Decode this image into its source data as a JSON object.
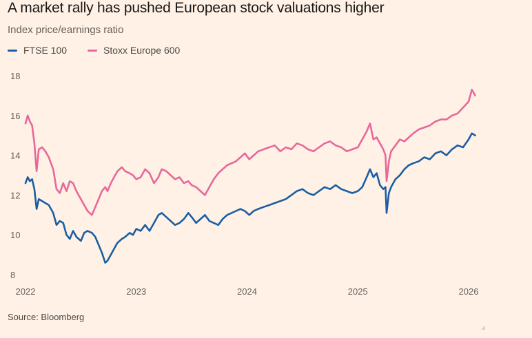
{
  "title": "A market rally has pushed European stock valuations higher",
  "subtitle": "Index price/earnings ratio",
  "source": "Source: Bloomberg",
  "colors": {
    "ftse": "#1a5ea3",
    "stoxx": "#e7689a",
    "background": "#fff1e5"
  },
  "chart_data": {
    "type": "line",
    "title": "A market rally has pushed European stock valuations higher",
    "subtitle": "Index price/earnings ratio",
    "xlabel": "",
    "ylabel": "Index price/earnings ratio",
    "xlim": [
      2022.0,
      2026.1
    ],
    "ylim": [
      8,
      18
    ],
    "grid": false,
    "legend": "top-left",
    "x_ticks": [
      2022,
      2023,
      2024,
      2025,
      2026
    ],
    "x_tick_labels": [
      "2022",
      "2023",
      "2024",
      "2025",
      "2026"
    ],
    "y_ticks": [
      8,
      10,
      12,
      14,
      16,
      18
    ],
    "y_tick_labels": [
      "8",
      "10",
      "12",
      "14",
      "16",
      "18"
    ],
    "series": [
      {
        "name": "FTSE 100",
        "color": "#1a5ea3",
        "x": [
          2022.0,
          2022.02,
          2022.04,
          2022.06,
          2022.08,
          2022.1,
          2022.12,
          2022.15,
          2022.18,
          2022.21,
          2022.25,
          2022.28,
          2022.31,
          2022.34,
          2022.37,
          2022.4,
          2022.43,
          2022.46,
          2022.5,
          2022.53,
          2022.56,
          2022.6,
          2022.63,
          2022.66,
          2022.69,
          2022.72,
          2022.74,
          2022.77,
          2022.8,
          2022.83,
          2022.87,
          2022.9,
          2022.94,
          2022.97,
          2023.0,
          2023.04,
          2023.08,
          2023.12,
          2023.16,
          2023.2,
          2023.23,
          2023.27,
          2023.31,
          2023.35,
          2023.39,
          2023.43,
          2023.47,
          2023.5,
          2023.54,
          2023.58,
          2023.62,
          2023.66,
          2023.7,
          2023.74,
          2023.78,
          2023.82,
          2023.86,
          2023.9,
          2023.94,
          2023.98,
          2024.02,
          2024.06,
          2024.1,
          2024.15,
          2024.2,
          2024.25,
          2024.3,
          2024.35,
          2024.4,
          2024.45,
          2024.5,
          2024.55,
          2024.6,
          2024.65,
          2024.7,
          2024.75,
          2024.8,
          2024.85,
          2024.9,
          2024.95,
          2025.0,
          2025.04,
          2025.08,
          2025.11,
          2025.14,
          2025.17,
          2025.2,
          2025.23,
          2025.25,
          2025.26,
          2025.28,
          2025.3,
          2025.34,
          2025.38,
          2025.42,
          2025.46,
          2025.5,
          2025.55,
          2025.6,
          2025.65,
          2025.7,
          2025.75,
          2025.8,
          2025.85,
          2025.9,
          2025.95,
          2026.0,
          2026.03,
          2026.06
        ],
        "values": [
          12.6,
          12.9,
          12.7,
          12.8,
          12.3,
          11.3,
          11.8,
          11.7,
          11.6,
          11.5,
          11.1,
          10.5,
          10.7,
          10.6,
          10.0,
          9.8,
          10.2,
          9.9,
          9.7,
          10.1,
          10.2,
          10.1,
          9.9,
          9.5,
          9.1,
          8.6,
          8.7,
          9.0,
          9.3,
          9.6,
          9.8,
          9.9,
          10.1,
          10.0,
          10.3,
          10.2,
          10.5,
          10.2,
          10.6,
          11.0,
          11.1,
          10.9,
          10.7,
          10.5,
          10.6,
          10.8,
          11.1,
          10.9,
          10.6,
          10.8,
          11.0,
          10.7,
          10.6,
          10.5,
          10.8,
          11.0,
          11.1,
          11.2,
          11.3,
          11.2,
          11.0,
          11.2,
          11.3,
          11.4,
          11.5,
          11.6,
          11.7,
          11.8,
          12.0,
          12.2,
          12.3,
          12.1,
          12.0,
          12.2,
          12.4,
          12.3,
          12.5,
          12.3,
          12.2,
          12.1,
          12.2,
          12.4,
          12.9,
          13.3,
          12.9,
          13.1,
          12.5,
          12.3,
          12.4,
          11.1,
          12.1,
          12.4,
          12.8,
          13.0,
          13.3,
          13.5,
          13.6,
          13.7,
          13.9,
          13.8,
          14.1,
          14.2,
          14.0,
          14.3,
          14.5,
          14.4,
          14.8,
          15.1,
          15.0
        ]
      },
      {
        "name": "Stoxx Europe 600",
        "color": "#e7689a",
        "x": [
          2022.0,
          2022.02,
          2022.04,
          2022.06,
          2022.08,
          2022.1,
          2022.12,
          2022.15,
          2022.18,
          2022.21,
          2022.25,
          2022.28,
          2022.31,
          2022.34,
          2022.37,
          2022.4,
          2022.43,
          2022.46,
          2022.5,
          2022.53,
          2022.56,
          2022.6,
          2022.63,
          2022.66,
          2022.69,
          2022.72,
          2022.74,
          2022.77,
          2022.8,
          2022.83,
          2022.87,
          2022.9,
          2022.94,
          2022.97,
          2023.0,
          2023.04,
          2023.08,
          2023.12,
          2023.16,
          2023.2,
          2023.23,
          2023.27,
          2023.31,
          2023.35,
          2023.39,
          2023.43,
          2023.47,
          2023.5,
          2023.54,
          2023.58,
          2023.62,
          2023.66,
          2023.7,
          2023.74,
          2023.78,
          2023.82,
          2023.86,
          2023.9,
          2023.94,
          2023.98,
          2024.02,
          2024.06,
          2024.1,
          2024.15,
          2024.2,
          2024.25,
          2024.3,
          2024.35,
          2024.4,
          2024.45,
          2024.5,
          2024.55,
          2024.6,
          2024.65,
          2024.7,
          2024.75,
          2024.8,
          2024.85,
          2024.9,
          2024.95,
          2025.0,
          2025.04,
          2025.08,
          2025.11,
          2025.14,
          2025.17,
          2025.2,
          2025.23,
          2025.25,
          2025.26,
          2025.28,
          2025.3,
          2025.34,
          2025.38,
          2025.42,
          2025.46,
          2025.5,
          2025.55,
          2025.6,
          2025.65,
          2025.7,
          2025.75,
          2025.8,
          2025.85,
          2025.9,
          2025.95,
          2026.0,
          2026.03,
          2026.06
        ],
        "values": [
          15.6,
          16.0,
          15.7,
          15.5,
          14.6,
          13.2,
          14.3,
          14.4,
          14.2,
          13.9,
          13.3,
          12.3,
          12.1,
          12.6,
          12.2,
          12.7,
          12.6,
          12.2,
          11.8,
          11.5,
          11.2,
          11.0,
          11.4,
          11.8,
          12.2,
          12.4,
          12.2,
          12.6,
          12.9,
          13.2,
          13.4,
          13.2,
          13.1,
          13.0,
          12.8,
          12.9,
          13.3,
          13.1,
          12.6,
          12.9,
          13.3,
          13.2,
          13.0,
          12.8,
          12.9,
          12.6,
          12.7,
          12.5,
          12.4,
          12.2,
          12.0,
          12.4,
          12.8,
          13.1,
          13.3,
          13.5,
          13.6,
          13.7,
          13.9,
          14.1,
          13.8,
          14.0,
          14.2,
          14.3,
          14.4,
          14.5,
          14.2,
          14.4,
          14.3,
          14.6,
          14.5,
          14.3,
          14.2,
          14.4,
          14.6,
          14.7,
          14.5,
          14.4,
          14.2,
          14.3,
          14.4,
          14.8,
          15.2,
          15.6,
          14.8,
          14.9,
          14.6,
          14.3,
          14.0,
          12.7,
          13.7,
          14.2,
          14.5,
          14.8,
          14.7,
          14.9,
          15.1,
          15.3,
          15.4,
          15.5,
          15.7,
          15.8,
          15.8,
          16.0,
          16.1,
          16.4,
          16.7,
          17.3,
          17.0
        ]
      }
    ]
  }
}
